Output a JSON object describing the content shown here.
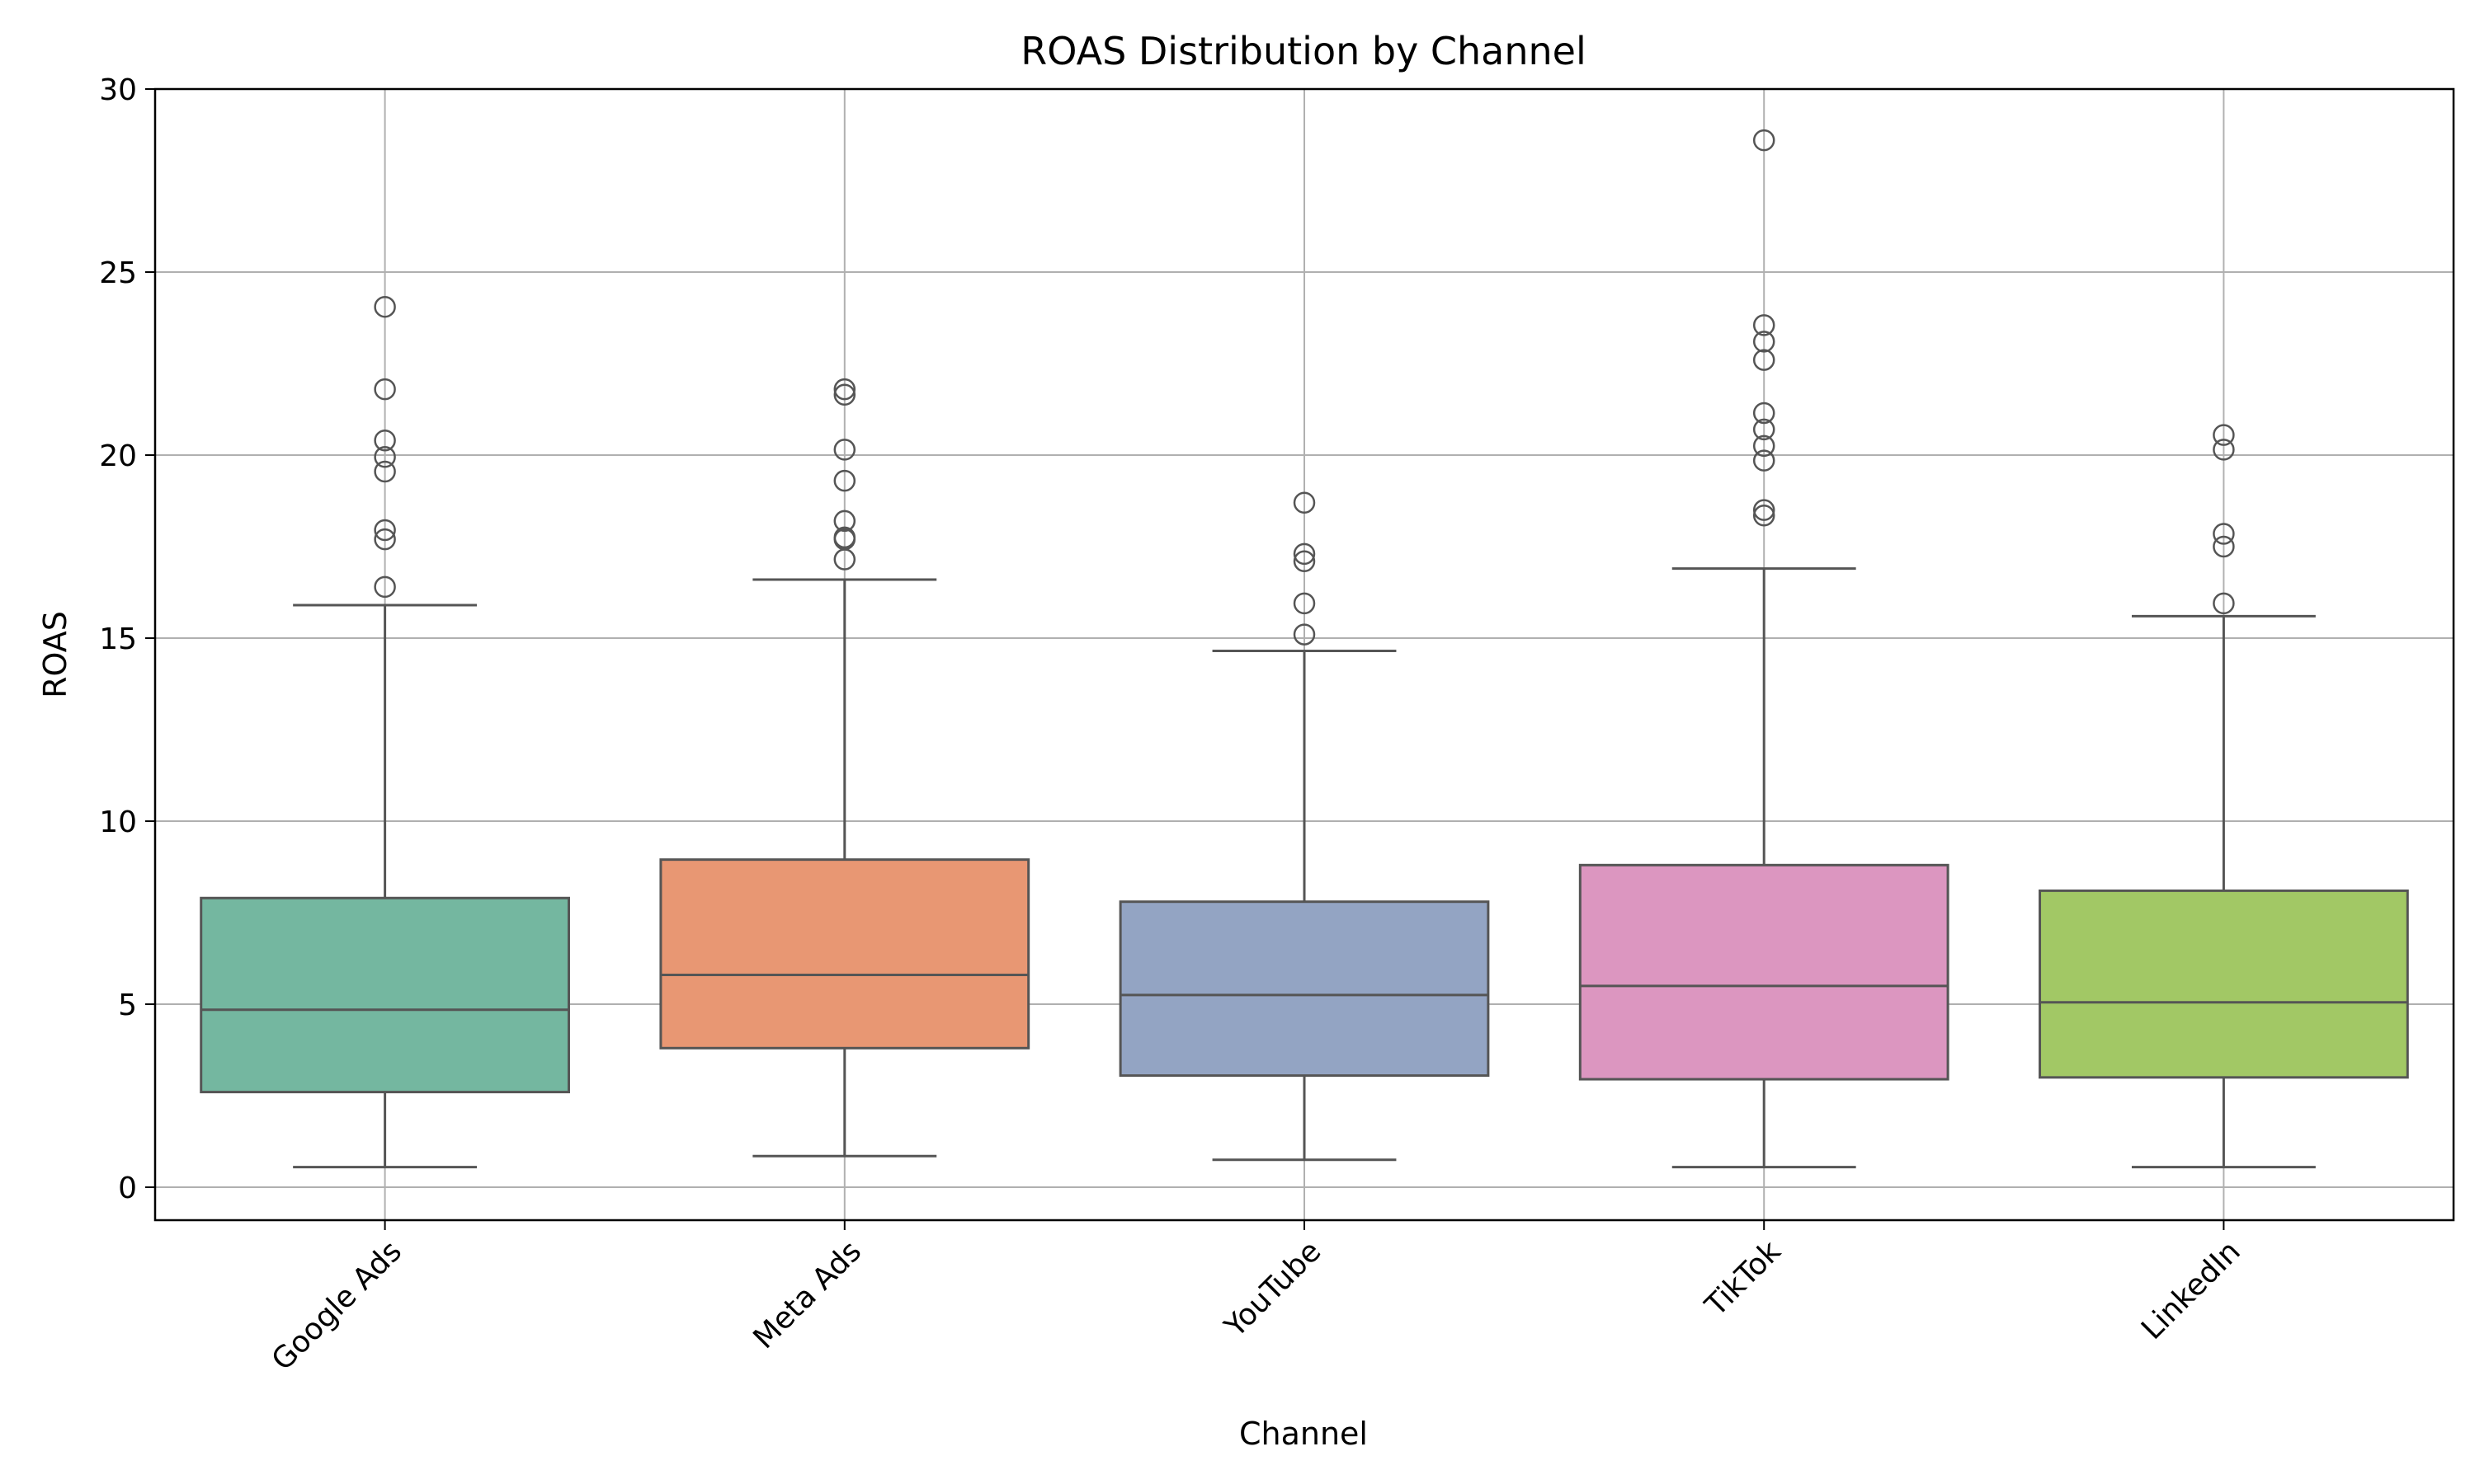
{
  "chart_data": {
    "type": "box",
    "title": "ROAS Distribution by Channel",
    "xlabel": "Channel",
    "ylabel": "ROAS",
    "ylim": [
      -0.9,
      30
    ],
    "yticks": [
      0,
      5,
      10,
      15,
      20,
      25,
      30
    ],
    "grid": true,
    "categories": [
      "Google Ads",
      "Meta Ads",
      "YouTube",
      "TikTok",
      "LinkedIn"
    ],
    "series": [
      {
        "category": "Google Ads",
        "color": "#74b7a0",
        "whisker_low": 0.55,
        "q1": 2.6,
        "median": 4.85,
        "q3": 7.9,
        "whisker_high": 15.9,
        "outliers": [
          16.4,
          17.7,
          17.95,
          19.55,
          19.95,
          20.4,
          21.8,
          24.05
        ]
      },
      {
        "category": "Meta Ads",
        "color": "#e89773",
        "whisker_low": 0.85,
        "q1": 3.8,
        "median": 5.8,
        "q3": 8.95,
        "whisker_high": 16.6,
        "outliers": [
          17.15,
          17.7,
          17.75,
          18.2,
          19.3,
          20.15,
          21.65,
          21.8
        ]
      },
      {
        "category": "YouTube",
        "color": "#93a4c3",
        "whisker_low": 0.75,
        "q1": 3.05,
        "median": 5.25,
        "q3": 7.8,
        "whisker_high": 14.65,
        "outliers": [
          15.1,
          15.95,
          17.1,
          17.3,
          18.7
        ]
      },
      {
        "category": "TikTok",
        "color": "#dc96c0",
        "whisker_low": 0.55,
        "q1": 2.95,
        "median": 5.5,
        "q3": 8.8,
        "whisker_high": 16.9,
        "outliers": [
          18.35,
          18.5,
          19.85,
          20.25,
          20.7,
          21.15,
          22.6,
          23.1,
          23.55,
          28.6
        ]
      },
      {
        "category": "LinkedIn",
        "color": "#a2c865",
        "whisker_low": 0.55,
        "q1": 3.0,
        "median": 5.05,
        "q3": 8.1,
        "whisker_high": 15.6,
        "outliers": [
          15.95,
          17.5,
          17.85,
          20.15,
          20.55
        ]
      }
    ]
  }
}
